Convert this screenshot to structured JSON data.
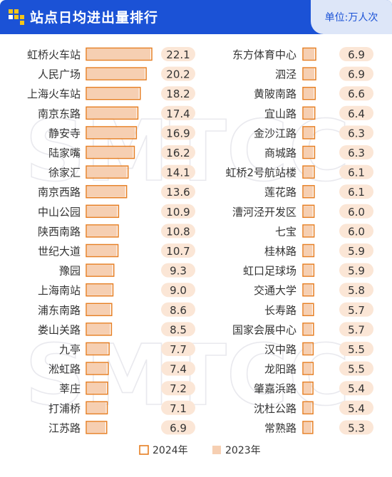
{
  "header": {
    "title": "站点日均进出量排行",
    "unit": "单位:万人次"
  },
  "colors": {
    "header_bg": "#1b52d6",
    "unit_bg": "#dde6f8",
    "bar_2024_stroke": "#e67e22",
    "bar_2023_fill": "#f6cfb2",
    "value_pill": "#fbe6d6"
  },
  "watermark": "SMTCC",
  "chart_data": {
    "type": "bar",
    "orientation": "horizontal",
    "legend_position": "bottom-center",
    "series": [
      {
        "name": "2024年",
        "style": "outline"
      },
      {
        "name": "2023年",
        "style": "filled"
      }
    ],
    "columns": [
      {
        "categories": [
          "虹桥火车站",
          "人民广场",
          "上海火车站",
          "南京东路",
          "静安寺",
          "陆家嘴",
          "徐家汇",
          "南京西路",
          "中山公园",
          "陕西南路",
          "世纪大道",
          "豫园",
          "上海南站",
          "浦东南路",
          "娄山关路",
          "九亭",
          "淞虹路",
          "莘庄",
          "打浦桥",
          "江苏路"
        ],
        "values": [
          22.1,
          20.2,
          18.2,
          17.4,
          16.9,
          16.2,
          14.1,
          13.6,
          10.9,
          10.8,
          10.7,
          9.3,
          9.0,
          8.6,
          8.5,
          7.7,
          7.4,
          7.2,
          7.1,
          6.9
        ],
        "value_labels": [
          "22.1",
          "20.2",
          "18.2",
          "17.4",
          "16.9",
          "16.2",
          "14.1",
          "13.6",
          "10.9",
          "10.8",
          "10.7",
          "9.3",
          "9.0",
          "8.6",
          "8.5",
          "7.7",
          "7.4",
          "7.2",
          "7.1",
          "6.9"
        ]
      },
      {
        "categories": [
          "东方体育中心",
          "泗泾",
          "黄陂南路",
          "宜山路",
          "金沙江路",
          "商城路",
          "虹桥2号航站楼",
          "莲花路",
          "漕河泾开发区",
          "七宝",
          "桂林路",
          "虹口足球场",
          "交通大学",
          "长寿路",
          "国家会展中心",
          "汉中路",
          "龙阳路",
          "肇嘉浜路",
          "沈杜公路",
          "常熟路"
        ],
        "values": [
          6.9,
          6.9,
          6.6,
          6.4,
          6.3,
          6.3,
          6.1,
          6.1,
          6.0,
          6.0,
          5.9,
          5.9,
          5.8,
          5.7,
          5.7,
          5.5,
          5.5,
          5.4,
          5.4,
          5.3
        ],
        "value_labels": [
          "6.9",
          "6.9",
          "6.6",
          "6.4",
          "6.3",
          "6.3",
          "6.1",
          "6.1",
          "6.0",
          "6.0",
          "5.9",
          "5.9",
          "5.8",
          "5.7",
          "5.7",
          "5.5",
          "5.5",
          "5.4",
          "5.4",
          "5.3"
        ]
      }
    ]
  }
}
